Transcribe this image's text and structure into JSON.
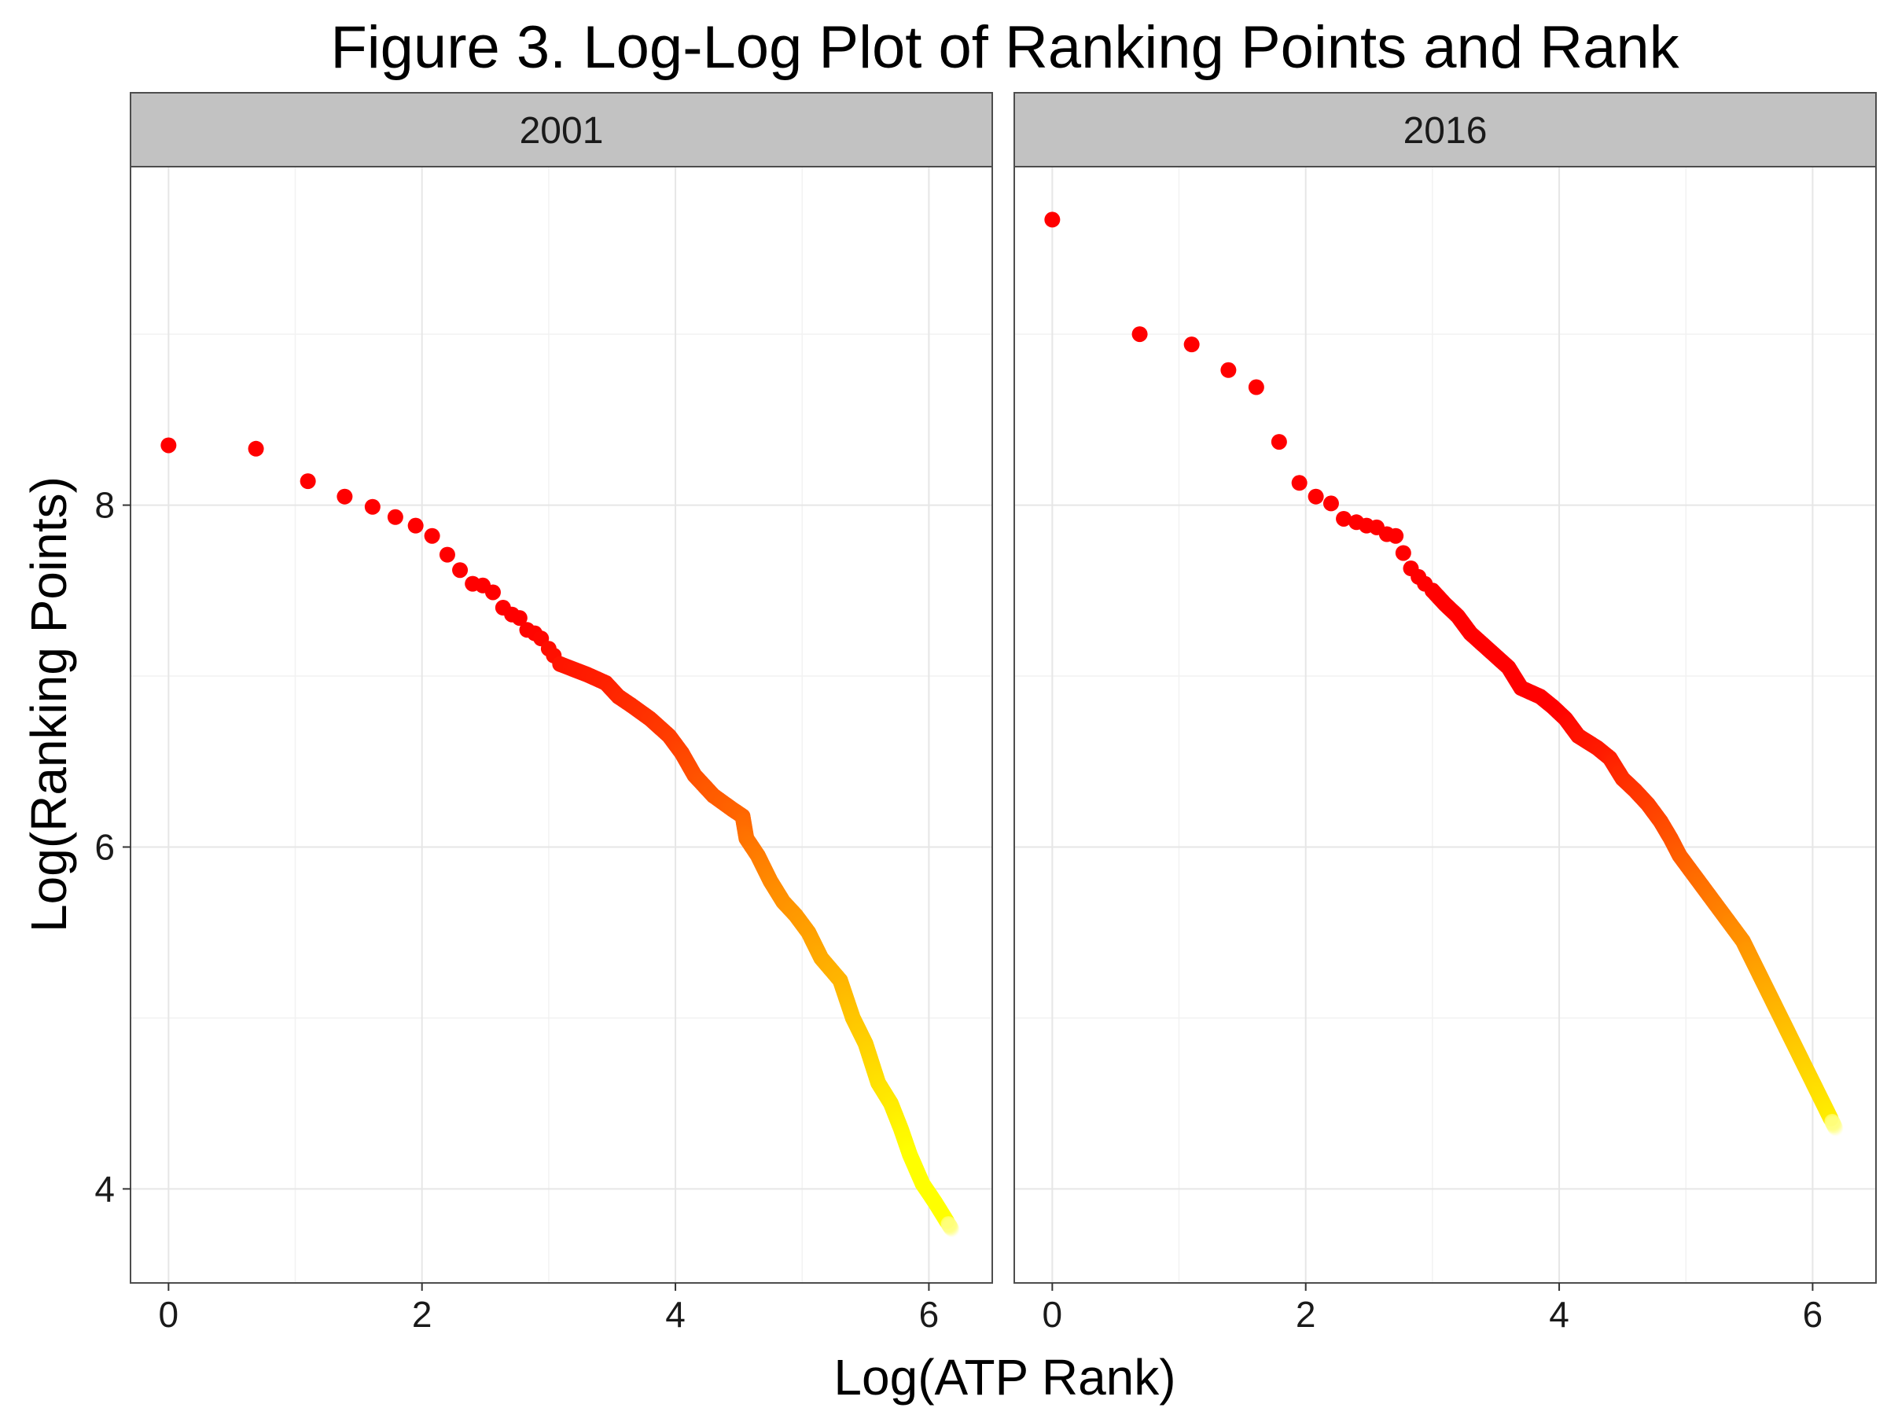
{
  "chart_data": {
    "type": "scatter",
    "title": "Figure 3. Log-Log Plot of Ranking Points and Rank",
    "xlabel": "Log(ATP Rank)",
    "ylabel": "Log(Ranking Points)",
    "xlim": [
      -0.3,
      6.5
    ],
    "ylim": [
      3.45,
      9.98
    ],
    "x_ticks": [
      0,
      2,
      4,
      6
    ],
    "y_ticks": [
      4,
      6,
      8
    ],
    "grid": true,
    "color_scale": {
      "low": "#ffff00",
      "mid": "#ff8c00",
      "high": "#ff0000"
    },
    "panels": [
      {
        "label": "2001",
        "color_threshold": 7.3,
        "discrete_points": [
          [
            0.0,
            8.35
          ],
          [
            0.69,
            8.33
          ],
          [
            1.1,
            8.14
          ],
          [
            1.39,
            8.05
          ],
          [
            1.61,
            7.99
          ],
          [
            1.79,
            7.93
          ],
          [
            1.95,
            7.88
          ],
          [
            2.08,
            7.82
          ],
          [
            2.2,
            7.71
          ],
          [
            2.3,
            7.62
          ],
          [
            2.4,
            7.54
          ],
          [
            2.48,
            7.53
          ],
          [
            2.56,
            7.49
          ],
          [
            2.64,
            7.4
          ],
          [
            2.71,
            7.36
          ],
          [
            2.77,
            7.34
          ],
          [
            2.83,
            7.27
          ],
          [
            2.89,
            7.25
          ],
          [
            2.94,
            7.22
          ],
          [
            3.0,
            7.16
          ],
          [
            3.04,
            7.12
          ],
          [
            3.09,
            7.07
          ]
        ],
        "curve": [
          [
            3.09,
            7.07
          ],
          [
            3.3,
            7.01
          ],
          [
            3.45,
            6.96
          ],
          [
            3.55,
            6.88
          ],
          [
            3.65,
            6.83
          ],
          [
            3.8,
            6.75
          ],
          [
            3.95,
            6.65
          ],
          [
            4.05,
            6.55
          ],
          [
            4.15,
            6.42
          ],
          [
            4.3,
            6.3
          ],
          [
            4.45,
            6.22
          ],
          [
            4.53,
            6.18
          ],
          [
            4.56,
            6.05
          ],
          [
            4.65,
            5.95
          ],
          [
            4.75,
            5.8
          ],
          [
            4.85,
            5.68
          ],
          [
            4.95,
            5.6
          ],
          [
            5.05,
            5.5
          ],
          [
            5.15,
            5.35
          ],
          [
            5.3,
            5.22
          ],
          [
            5.4,
            5.0
          ],
          [
            5.5,
            4.85
          ],
          [
            5.6,
            4.62
          ],
          [
            5.7,
            4.5
          ],
          [
            5.78,
            4.35
          ],
          [
            5.85,
            4.2
          ],
          [
            5.95,
            4.03
          ],
          [
            6.05,
            3.92
          ],
          [
            6.15,
            3.8
          ]
        ]
      },
      {
        "label": "2016",
        "color_threshold": 6.8,
        "discrete_points": [
          [
            0.0,
            9.67
          ],
          [
            0.69,
            9.0
          ],
          [
            1.1,
            8.94
          ],
          [
            1.39,
            8.79
          ],
          [
            1.61,
            8.69
          ],
          [
            1.79,
            8.37
          ],
          [
            1.95,
            8.13
          ],
          [
            2.08,
            8.05
          ],
          [
            2.2,
            8.01
          ],
          [
            2.3,
            7.92
          ],
          [
            2.4,
            7.9
          ],
          [
            2.48,
            7.88
          ],
          [
            2.56,
            7.87
          ],
          [
            2.64,
            7.83
          ],
          [
            2.71,
            7.82
          ],
          [
            2.77,
            7.72
          ],
          [
            2.83,
            7.63
          ],
          [
            2.89,
            7.58
          ],
          [
            2.94,
            7.54
          ],
          [
            3.0,
            7.5
          ]
        ],
        "curve": [
          [
            3.0,
            7.5
          ],
          [
            3.1,
            7.42
          ],
          [
            3.2,
            7.35
          ],
          [
            3.3,
            7.25
          ],
          [
            3.45,
            7.15
          ],
          [
            3.6,
            7.05
          ],
          [
            3.7,
            6.93
          ],
          [
            3.85,
            6.88
          ],
          [
            3.95,
            6.82
          ],
          [
            4.05,
            6.75
          ],
          [
            4.15,
            6.65
          ],
          [
            4.3,
            6.58
          ],
          [
            4.4,
            6.52
          ],
          [
            4.5,
            6.4
          ],
          [
            4.6,
            6.33
          ],
          [
            4.7,
            6.25
          ],
          [
            4.8,
            6.15
          ],
          [
            4.88,
            6.05
          ],
          [
            4.95,
            5.95
          ],
          [
            5.05,
            5.85
          ],
          [
            5.15,
            5.75
          ],
          [
            5.25,
            5.65
          ],
          [
            5.35,
            5.55
          ],
          [
            5.45,
            5.45
          ],
          [
            5.55,
            5.3
          ],
          [
            5.65,
            5.15
          ],
          [
            5.75,
            5.0
          ],
          [
            5.85,
            4.85
          ],
          [
            5.95,
            4.7
          ],
          [
            6.05,
            4.55
          ],
          [
            6.15,
            4.4
          ]
        ]
      }
    ]
  }
}
